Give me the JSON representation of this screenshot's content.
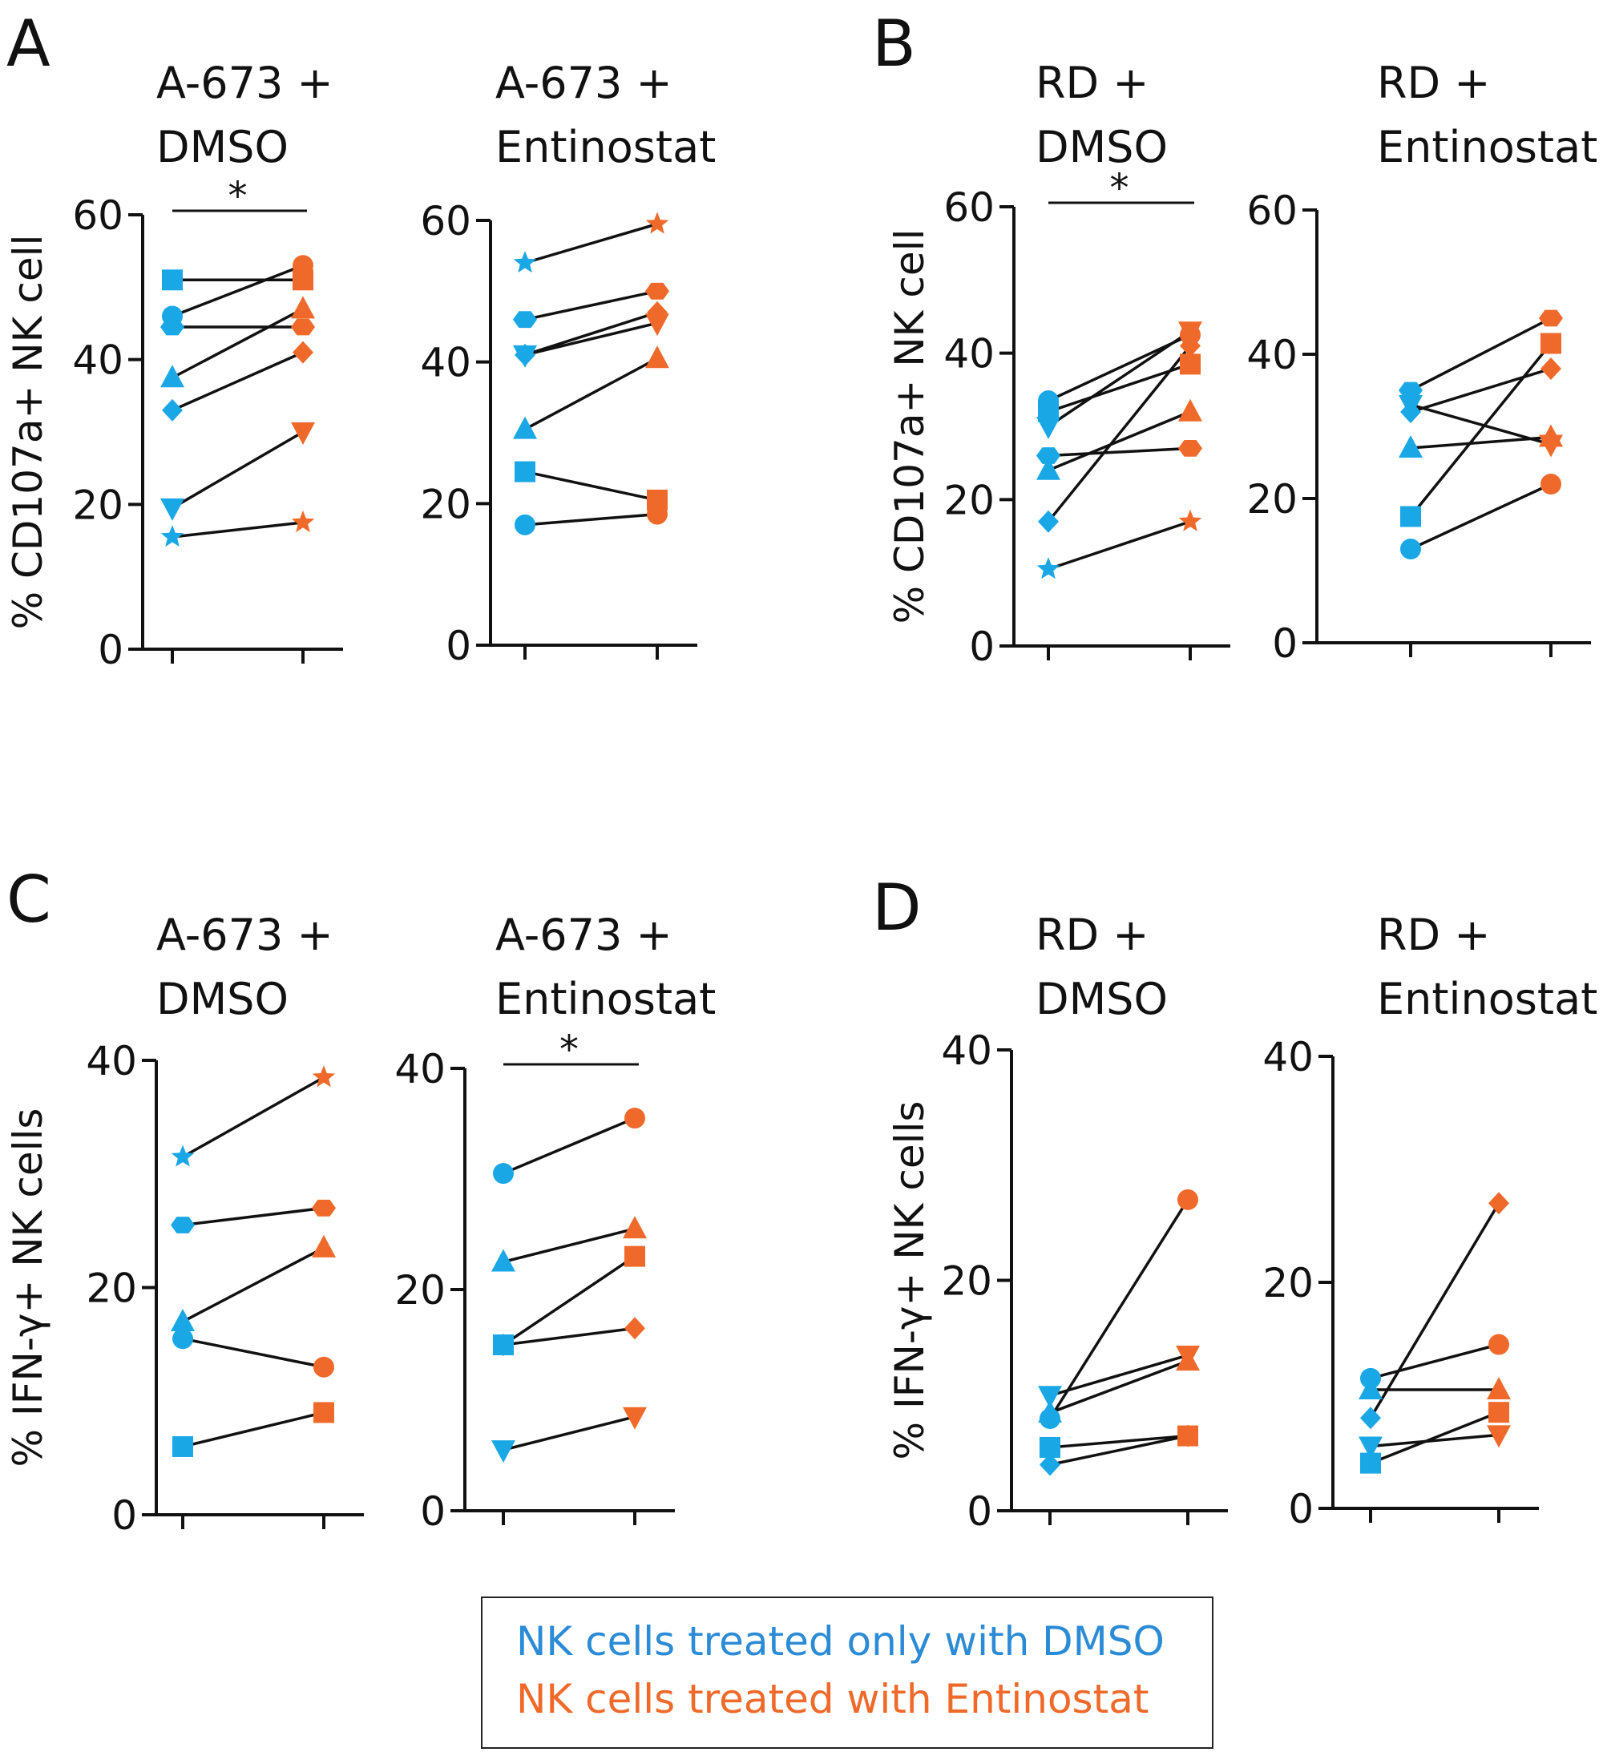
{
  "colors": {
    "dmso": "#1aa7e6",
    "entinostat": "#ef6a2a",
    "axis": "#111111",
    "line": "#111111"
  },
  "legend": {
    "dmso_label": "NK cells treated only with DMSO",
    "entinostat_label": "NK cells treated with Entinostat",
    "dmso_color": "#2b8bd6",
    "entinostat_color": "#ef6a2a"
  },
  "chart_data": [
    {
      "type": "scatter",
      "panel": "A",
      "title_lines": [
        "A-673 +",
        "DMSO"
      ],
      "ylabel": "% CD107a+ NK cell",
      "ylim": [
        0,
        60
      ],
      "yticks": [
        0,
        20,
        40,
        60
      ],
      "significance": "*",
      "pairs": [
        {
          "shape": "square",
          "dmso": 51,
          "entinostat": 51
        },
        {
          "shape": "circle",
          "dmso": 46,
          "entinostat": 53
        },
        {
          "shape": "hexagon",
          "dmso": 44.5,
          "entinostat": 44.5
        },
        {
          "shape": "triangle-up",
          "dmso": 37.5,
          "entinostat": 47
        },
        {
          "shape": "diamond",
          "dmso": 33,
          "entinostat": 41
        },
        {
          "shape": "triangle-down",
          "dmso": 19.5,
          "entinostat": 30
        },
        {
          "shape": "star",
          "dmso": 15.5,
          "entinostat": 17.5
        }
      ]
    },
    {
      "type": "scatter",
      "panel": "",
      "title_lines": [
        "A-673 +",
        "Entinostat"
      ],
      "ylabel": "",
      "ylim": [
        0,
        60
      ],
      "yticks": [
        0,
        20,
        40,
        60
      ],
      "significance": "",
      "pairs": [
        {
          "shape": "star",
          "dmso": 54,
          "entinostat": 59.5
        },
        {
          "shape": "hexagon",
          "dmso": 46,
          "entinostat": 50
        },
        {
          "shape": "triangle-down",
          "dmso": 41,
          "entinostat": 45.5
        },
        {
          "shape": "diamond",
          "dmso": 41,
          "entinostat": 47
        },
        {
          "shape": "triangle-up",
          "dmso": 30.5,
          "entinostat": 40.5
        },
        {
          "shape": "square",
          "dmso": 24.5,
          "entinostat": 20.5
        },
        {
          "shape": "circle",
          "dmso": 17,
          "entinostat": 18.5
        }
      ]
    },
    {
      "type": "scatter",
      "panel": "B",
      "title_lines": [
        "RD +",
        "DMSO"
      ],
      "ylabel": "% CD107a+ NK cell",
      "ylim": [
        0,
        60
      ],
      "yticks": [
        0,
        20,
        40,
        60
      ],
      "significance": "*",
      "pairs": [
        {
          "shape": "circle",
          "dmso": 33.5,
          "entinostat": 42.5
        },
        {
          "shape": "square",
          "dmso": 32,
          "entinostat": 38.5
        },
        {
          "shape": "triangle-down",
          "dmso": 30,
          "entinostat": 43
        },
        {
          "shape": "hexagon",
          "dmso": 26,
          "entinostat": 27
        },
        {
          "shape": "triangle-up",
          "dmso": 24,
          "entinostat": 32
        },
        {
          "shape": "diamond",
          "dmso": 17,
          "entinostat": 41
        },
        {
          "shape": "star",
          "dmso": 10.5,
          "entinostat": 17
        }
      ]
    },
    {
      "type": "scatter",
      "panel": "",
      "title_lines": [
        "RD +",
        "Entinostat"
      ],
      "ylabel": "",
      "ylim": [
        0,
        60
      ],
      "yticks": [
        0,
        20,
        40,
        60
      ],
      "significance": "",
      "pairs": [
        {
          "shape": "hexagon",
          "dmso": 35,
          "entinostat": 45
        },
        {
          "shape": "triangle-down",
          "dmso": 33,
          "entinostat": 27.5
        },
        {
          "shape": "diamond",
          "dmso": 32,
          "entinostat": 38
        },
        {
          "shape": "triangle-up",
          "dmso": 27,
          "entinostat": 28.5
        },
        {
          "shape": "square",
          "dmso": 17.5,
          "entinostat": 41.5
        },
        {
          "shape": "circle",
          "dmso": 13,
          "entinostat": 22
        }
      ]
    },
    {
      "type": "scatter",
      "panel": "C",
      "title_lines": [
        "A-673 +",
        "DMSO"
      ],
      "ylabel": "% IFN-γ+ NK cells",
      "ylim": [
        0,
        40
      ],
      "yticks": [
        0,
        20,
        40
      ],
      "significance": "",
      "pairs": [
        {
          "shape": "star",
          "dmso": 31.5,
          "entinostat": 38.5
        },
        {
          "shape": "hexagon",
          "dmso": 25.5,
          "entinostat": 27
        },
        {
          "shape": "triangle-up",
          "dmso": 17,
          "entinostat": 23.5
        },
        {
          "shape": "circle",
          "dmso": 15.5,
          "entinostat": 13
        },
        {
          "shape": "square",
          "dmso": 6,
          "entinostat": 9
        }
      ]
    },
    {
      "type": "scatter",
      "panel": "",
      "title_lines": [
        "A-673 +",
        "Entinostat"
      ],
      "ylabel": "",
      "ylim": [
        0,
        40
      ],
      "yticks": [
        0,
        20,
        40
      ],
      "significance": "*",
      "pairs": [
        {
          "shape": "circle",
          "dmso": 30.5,
          "entinostat": 35.5
        },
        {
          "shape": "triangle-up",
          "dmso": 22.5,
          "entinostat": 25.5
        },
        {
          "shape": "square",
          "dmso": 15,
          "entinostat": 23
        },
        {
          "shape": "diamond",
          "dmso": 15,
          "entinostat": 16.5
        },
        {
          "shape": "triangle-down",
          "dmso": 5.5,
          "entinostat": 8.5
        }
      ]
    },
    {
      "type": "scatter",
      "panel": "D",
      "title_lines": [
        "RD +",
        "DMSO"
      ],
      "ylabel": "% IFN-γ+ NK cells",
      "ylim": [
        0,
        40
      ],
      "yticks": [
        0,
        20,
        40
      ],
      "significance": "",
      "pairs": [
        {
          "shape": "circle",
          "dmso": 8,
          "entinostat": 27
        },
        {
          "shape": "triangle-down",
          "dmso": 10,
          "entinostat": 13.5
        },
        {
          "shape": "triangle-up",
          "dmso": 8.5,
          "entinostat": 13
        },
        {
          "shape": "square",
          "dmso": 5.5,
          "entinostat": 6.5
        },
        {
          "shape": "diamond",
          "dmso": 4,
          "entinostat": 6.5
        }
      ]
    },
    {
      "type": "scatter",
      "panel": "",
      "title_lines": [
        "RD +",
        "Entinostat"
      ],
      "ylabel": "",
      "ylim": [
        0,
        40
      ],
      "yticks": [
        0,
        20,
        40
      ],
      "significance": "",
      "pairs": [
        {
          "shape": "diamond",
          "dmso": 8,
          "entinostat": 27
        },
        {
          "shape": "circle",
          "dmso": 11.5,
          "entinostat": 14.5
        },
        {
          "shape": "triangle-up",
          "dmso": 10.5,
          "entinostat": 10.5
        },
        {
          "shape": "square",
          "dmso": 4,
          "entinostat": 8.5
        },
        {
          "shape": "triangle-down",
          "dmso": 5.5,
          "entinostat": 6.5
        }
      ]
    }
  ]
}
